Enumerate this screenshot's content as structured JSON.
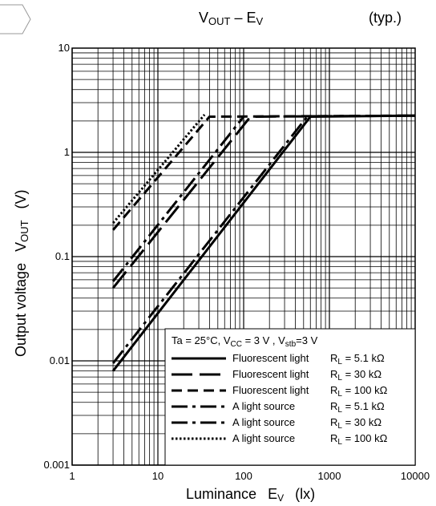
{
  "title": {
    "main": "V",
    "main_sub": "OUT",
    "main_mid": " – E",
    "main_sub2": "V",
    "right": "(typ.)"
  },
  "chart_data": {
    "type": "line",
    "xscale": "log",
    "yscale": "log",
    "xlim": [
      1,
      10000
    ],
    "ylim": [
      0.001,
      10
    ],
    "grid": true,
    "x_ticks": [
      "1",
      "10",
      "100",
      "1000",
      "10000"
    ],
    "y_ticks": [
      "0.001",
      "0.01",
      "0.1",
      "1",
      "10"
    ],
    "xlabel": {
      "text": "Luminance",
      "symbol": "E",
      "symbol_sub": "V",
      "unit": "(lx)"
    },
    "ylabel": {
      "text": "Output voltage",
      "symbol": "V",
      "symbol_sub": "OUT",
      "unit": "(V)"
    },
    "legend": {
      "placement": "bottom-right",
      "condition": {
        "ta": "Ta = 25°C, V",
        "vcc_sub": "CC",
        "vcc": " = 3 V , V",
        "vstb_sub": "stb",
        "vstb": "=3 V"
      },
      "entries": [
        {
          "label": "Fluorescent light",
          "rl": "R",
          "rl_sub": "L",
          "rl_val": " = 5.1 kΩ"
        },
        {
          "label": "Fluorescent light",
          "rl": "R",
          "rl_sub": "L",
          "rl_val": " = 30 kΩ"
        },
        {
          "label": "Fluorescent light",
          "rl": "R",
          "rl_sub": "L",
          "rl_val": " = 100 kΩ"
        },
        {
          "label": "A light source",
          "rl": "R",
          "rl_sub": "L",
          "rl_val": " = 5.1 kΩ"
        },
        {
          "label": "A light source",
          "rl": "R",
          "rl_sub": "L",
          "rl_val": " = 30 kΩ"
        },
        {
          "label": "A light source",
          "rl": "R",
          "rl_sub": "L",
          "rl_val": " = 100 kΩ"
        }
      ]
    },
    "series": [
      {
        "style": "solid",
        "points": [
          [
            3,
            0.008
          ],
          [
            600,
            2.2
          ],
          [
            10000,
            2.25
          ]
        ]
      },
      {
        "style": "longdash",
        "points": [
          [
            3,
            0.05
          ],
          [
            120,
            2.2
          ],
          [
            10000,
            2.25
          ]
        ]
      },
      {
        "style": "dash",
        "points": [
          [
            3,
            0.18
          ],
          [
            40,
            2.2
          ],
          [
            10000,
            2.25
          ]
        ]
      },
      {
        "style": "dashdot",
        "points": [
          [
            3,
            0.0095
          ],
          [
            550,
            2.2
          ]
        ]
      },
      {
        "style": "dashdot",
        "points": [
          [
            3,
            0.058
          ],
          [
            100,
            2.2
          ]
        ]
      },
      {
        "style": "dotted",
        "points": [
          [
            3,
            0.21
          ],
          [
            35,
            2.3
          ]
        ]
      }
    ]
  }
}
